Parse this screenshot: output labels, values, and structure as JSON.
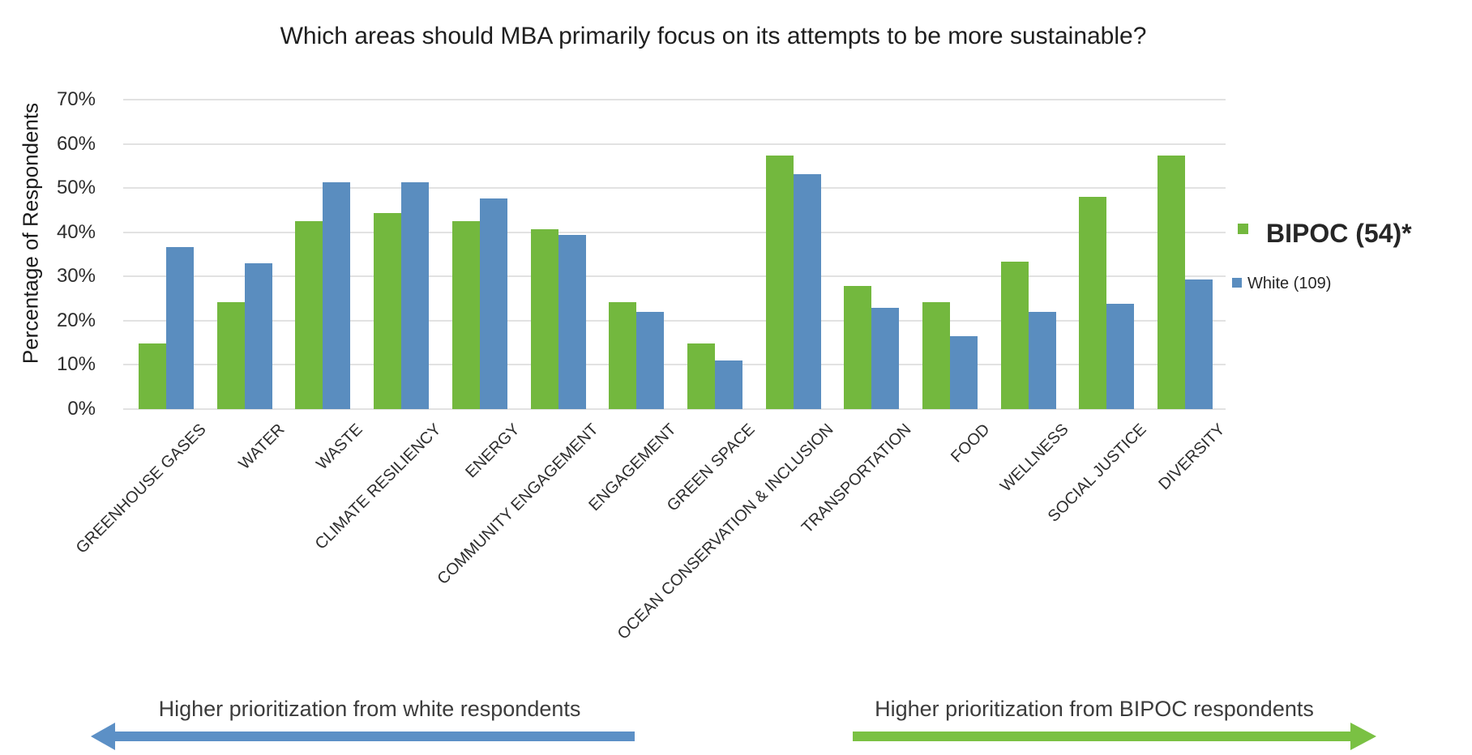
{
  "title": "Which areas should MBA primarily focus on its attempts to be more sustainable?",
  "legend": {
    "bipoc_label": "BIPOC (54)*",
    "white_label": "White (109)"
  },
  "annotations": {
    "left": "Higher prioritization from white respondents",
    "right": "Higher prioritization from BIPOC respondents"
  },
  "colors": {
    "bipoc_green": "#73B83E",
    "white_blue": "#5A8DBF",
    "arrow_green": "#7AC143",
    "arrow_blue": "#5C90C6",
    "gridline": "#E2E2E2"
  },
  "chart_data": {
    "type": "bar",
    "title": "Which areas should MBA primarily focus on its attempts to be more sustainable?",
    "xlabel": "",
    "ylabel": "Percentage of Respondents",
    "ylim": [
      0,
      70
    ],
    "ytick_values": [
      0,
      10,
      20,
      30,
      40,
      50,
      60,
      70
    ],
    "ytick_labels": [
      "0%",
      "10%",
      "20%",
      "30%",
      "40%",
      "50%",
      "60%",
      "70%"
    ],
    "grid": "horizontal",
    "legend_position": "right",
    "categories": [
      "GREENHOUSE GASES",
      "WATER",
      "WASTE",
      "CLIMATE RESILIENCY",
      "ENERGY",
      "COMMUNITY ENGAGEMENT",
      "ENGAGEMENT",
      "GREEN SPACE",
      "OCEAN CONSERVATION & INCLUSION",
      "TRANSPORTATION",
      "FOOD",
      "WELLNESS",
      "SOCIAL JUSTICE",
      "DIVERSITY"
    ],
    "series": [
      {
        "name": "BIPOC (54)*",
        "color": "#73B83E",
        "values": [
          14.8,
          24.1,
          42.6,
          44.4,
          42.6,
          40.7,
          24.1,
          14.8,
          57.4,
          27.8,
          24.1,
          33.3,
          48.1,
          57.4
        ]
      },
      {
        "name": "White (109)",
        "color": "#5A8DBF",
        "values": [
          36.7,
          33.0,
          51.4,
          51.4,
          47.7,
          39.4,
          22.0,
          11.0,
          53.2,
          22.9,
          16.5,
          22.0,
          23.9,
          29.4
        ]
      }
    ]
  }
}
